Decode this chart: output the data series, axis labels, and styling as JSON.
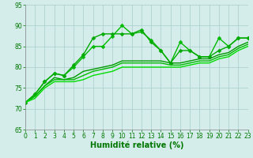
{
  "x": [
    0,
    1,
    2,
    3,
    4,
    5,
    6,
    7,
    8,
    9,
    10,
    11,
    12,
    13,
    14,
    15,
    16,
    17,
    18,
    19,
    20,
    21,
    22,
    23
  ],
  "series": [
    {
      "y": [
        71.5,
        73.5,
        76.5,
        78.5,
        78,
        80,
        82.5,
        85,
        85,
        87.5,
        90,
        88,
        88.5,
        86.5,
        84,
        81,
        86,
        84,
        82.5,
        82.5,
        87,
        85,
        87,
        87
      ],
      "color": "#00bb00",
      "marker": "D",
      "markersize": 2.5,
      "linewidth": 1.0
    },
    {
      "y": [
        71.5,
        73.5,
        76.5,
        78.5,
        78,
        80.5,
        83,
        87,
        88,
        88,
        88,
        88,
        89,
        86,
        84,
        81,
        84,
        84,
        82.5,
        82.5,
        84,
        85,
        87,
        87
      ],
      "color": "#00aa00",
      "marker": "D",
      "markersize": 2.5,
      "linewidth": 1.0
    },
    {
      "y": [
        71.5,
        73,
        75.5,
        77.5,
        77,
        77.5,
        79,
        79.5,
        80,
        80.5,
        81.5,
        81.5,
        81.5,
        81.5,
        81.5,
        81,
        81,
        81.5,
        82,
        82,
        83,
        83.5,
        85,
        86
      ],
      "color": "#009900",
      "marker": null,
      "markersize": 0,
      "linewidth": 1.0
    },
    {
      "y": [
        71.5,
        73,
        75.5,
        77,
        77,
        77,
        78,
        79,
        79.5,
        80,
        81,
        81,
        81,
        81,
        81,
        80.5,
        80.5,
        81,
        81.5,
        81.5,
        82.5,
        83,
        84.5,
        85.5
      ],
      "color": "#00bb00",
      "marker": null,
      "markersize": 0,
      "linewidth": 1.0
    },
    {
      "y": [
        71.5,
        72.5,
        75,
        76.5,
        76.5,
        76.5,
        77,
        78,
        78.5,
        79,
        80,
        80,
        80,
        80,
        80,
        80,
        80,
        80.5,
        81,
        81,
        82,
        82.5,
        84,
        85
      ],
      "color": "#00dd00",
      "marker": null,
      "markersize": 0,
      "linewidth": 1.0
    }
  ],
  "xlim": [
    0,
    23
  ],
  "ylim": [
    65,
    95
  ],
  "yticks": [
    65,
    70,
    75,
    80,
    85,
    90,
    95
  ],
  "xticks": [
    0,
    1,
    2,
    3,
    4,
    5,
    6,
    7,
    8,
    9,
    10,
    11,
    12,
    13,
    14,
    15,
    16,
    17,
    18,
    19,
    20,
    21,
    22,
    23
  ],
  "xlabel": "Humidité relative (%)",
  "bg_color": "#d4ecea",
  "grid_color": "#aacccc",
  "tick_label_color": "#007700",
  "xlabel_color": "#007700",
  "tick_fontsize": 5.5,
  "xlabel_fontsize": 7.0
}
